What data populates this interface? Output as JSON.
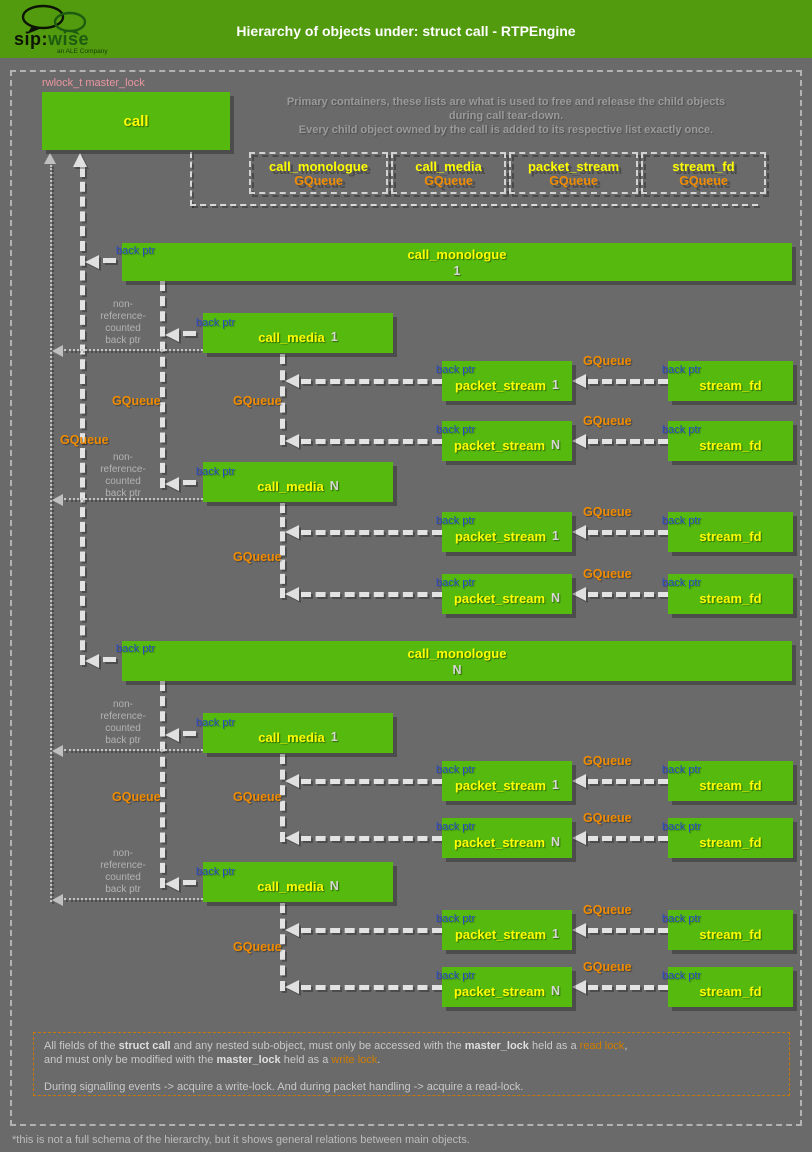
{
  "header": {
    "title": "Hierarchy of objects under: struct call - RTPEngine",
    "logo": {
      "sip": "sip:",
      "wise": "wise",
      "tagline": "an ALE Company"
    }
  },
  "top": {
    "master_lock": "rwlock_t master_lock",
    "call": "call",
    "intro1": "Primary containers, these lists are what is used to free and release the child objects",
    "intro2": "during call tear-down.",
    "intro3": "Every child object owned by the call is added to its respective list exactly once."
  },
  "containers": [
    {
      "name": "call_monologue",
      "type": "GQueue"
    },
    {
      "name": "call_media",
      "type": "GQueue"
    },
    {
      "name": "packet_stream",
      "type": "GQueue"
    },
    {
      "name": "stream_fd",
      "type": "GQueue"
    }
  ],
  "labels": {
    "back_ptr": "back ptr",
    "gqueue": "GQueue",
    "non_ref": "non-\nreference-\ncounted\nback ptr"
  },
  "nodes": {
    "monologue_1": {
      "name": "call_monologue",
      "num": "1"
    },
    "monologue_n": {
      "name": "call_monologue",
      "num": "N"
    },
    "media_1": {
      "name": "call_media",
      "num": "1"
    },
    "media_n": {
      "name": "call_media",
      "num": "N"
    },
    "stream_1": {
      "name": "packet_stream",
      "num": "1"
    },
    "stream_n": {
      "name": "packet_stream",
      "num": "N"
    },
    "fd": {
      "name": "stream_fd",
      "num": ""
    }
  },
  "footer": {
    "l1a": "All fields of the ",
    "l1b": "struct call",
    "l1c": " and any nested sub-object, must only be accessed with the ",
    "l1d": "master_lock",
    "l1e": " held as a ",
    "l1f": "read lock",
    "l1g": ",",
    "l2a": "and must only be modified with the ",
    "l2b": "master_lock",
    "l2c": " held as a ",
    "l2d": "write lock",
    "l2e": ".",
    "l3": "During signalling events -> acquire a write-lock. And during packet handling -> acquire a read-lock."
  },
  "footnote": "*this is not a full schema of the hierarchy, but it shows general relations between main objects.",
  "colors": {
    "header_green": "#529b0e",
    "box_green": "#55b90e",
    "accent_yellow": "#ffff00",
    "accent_orange": "#f18c00",
    "back_ptr_blue": "#2a4cc8",
    "master_lock_pink": "#e8969e",
    "background_gray": "#6a6a6a"
  }
}
